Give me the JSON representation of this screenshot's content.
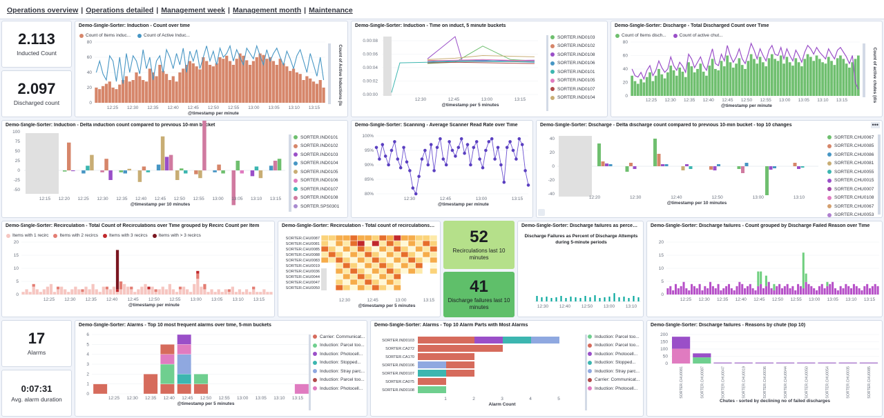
{
  "nav": [
    "Operations overview",
    "Operations detailed",
    "Management week",
    "Management month",
    "Maintenance"
  ],
  "colors": {
    "orange": "#d6866a",
    "orangeDark": "#c9693f",
    "blue": "#4796c4",
    "green": "#6fbf6f",
    "purple": "#9a4fc8",
    "teal": "#3cb6b0",
    "gray": "#e0e0e0"
  },
  "metrics": {
    "inducted": {
      "value": "2.113",
      "label": "Inducted Count"
    },
    "discharged": {
      "value": "2.097",
      "label": "Discharged count"
    },
    "alarms": {
      "value": "17",
      "label": "Alarms"
    },
    "alarm_duration": {
      "value": "0:07:31",
      "label": "Avg. alarm duration"
    },
    "recirc": {
      "value": "52",
      "label": "Recirculations last 10 minutes"
    },
    "discharge_fail": {
      "value": "41",
      "label": "Discharge failures last 10 minutes"
    }
  },
  "panels": {
    "p1": {
      "title": "Demo-Single-Sorter: Induction - Count over time",
      "legend": [
        "Count of Items induc...",
        "Count of Active Induc..."
      ],
      "xlabel": "@timestamp per minute",
      "ylabel2": "Count of Active Inductions (Is",
      "xticks": [
        "12:25",
        "12:30",
        "12:35",
        "12:40",
        "12:45",
        "12:50",
        "12:55",
        "13:00",
        "13:05",
        "13:10",
        "13:15"
      ],
      "yticks": [
        "0",
        "20",
        "40",
        "60",
        "80"
      ]
    },
    "p2": {
      "title": "Demo-Single-Sorter: Induction - Time on induct, 5 minute buckets",
      "xlabel": "@timestamp per 5 minutes",
      "xticks": [
        "12:30",
        "12:45",
        "13:00",
        "13:15"
      ],
      "yticks": [
        "0.00:00",
        "0.00:02",
        "0.00:04",
        "0.00:06",
        "0.00:08"
      ],
      "legend": [
        "SORTER.IND0103",
        "SORTER.IND0102",
        "SORTER.IND0108",
        "SORTER.IND0106",
        "SORTER.IND0101",
        "SORTER.IND0105",
        "SORTER.IND0107",
        "SORTER.IND0104"
      ]
    },
    "p3": {
      "title": "Demo-Single-Sorter: Discharge - Total Discharged Count over Time",
      "legend": [
        "Count of Items disch...",
        "Count of active chut..."
      ],
      "xlabel": "@timestamp per minute",
      "ylabel2": "Count of active chutes (dis",
      "xticks": [
        "12:25",
        "12:30",
        "12:35",
        "12:40",
        "12:45",
        "12:50",
        "12:55",
        "13:00",
        "13:05",
        "13:10",
        "13:15"
      ],
      "yticks": [
        "0",
        "20",
        "40",
        "60",
        "80"
      ]
    },
    "p4": {
      "title": "Demo-Single-Sorter: Induction - Delta induction count compared to previous 10-min bucket",
      "xlabel": "@timestamp per 10 minutes",
      "xticks": [
        "12:15",
        "12:20",
        "12:25",
        "12:30",
        "12:35",
        "12:40",
        "12:45",
        "12:50",
        "12:55",
        "13:00",
        "13:05",
        "13:10",
        "13:15"
      ],
      "yticks": [
        "-50",
        "-25",
        "0",
        "25",
        "50",
        "75",
        "100"
      ],
      "legend": [
        "SORTER.IND0101",
        "SORTER.IND0102",
        "SORTER.IND0103",
        "SORTER.IND0104",
        "SORTER.IND0105",
        "SORTER.IND0106",
        "SORTER.IND0107",
        "SORTER.IND0108",
        "SORTER.SPS0301"
      ]
    },
    "p5": {
      "title": "Demo-Single-Sorter: Scanning - Average Scanner Read Rate over Time",
      "xlabel": "@timestamp per minute",
      "xticks": [
        "12:30",
        "12:45",
        "13:00",
        "13:15"
      ],
      "yticks": [
        "80%",
        "85%",
        "90%",
        "95%",
        "100%"
      ]
    },
    "p6": {
      "title": "Demo-Single-Sorter: Discharge - Delta discharge count compared to previous 10-min bucket - top 10 changes",
      "xlabel": "@timestamp per 10 minutes",
      "xticks": [
        "12:20",
        "12:30",
        "12:40",
        "12:50",
        "13:00",
        "13:10"
      ],
      "yticks": [
        "-40",
        "-20",
        "0",
        "20",
        "40"
      ],
      "legend": [
        "SORTER.CHU0067",
        "SORTER.CHU0085",
        "SORTER.CHU0086",
        "SORTER.CHU0081",
        "SORTER.CHU0055",
        "SORTER.CHU0015",
        "SORTER.CHU0007",
        "SORTER.CHU0108",
        "SORTER.CHU0067",
        "SORTER.CHU0053"
      ]
    },
    "p7": {
      "title": "Demo-Single-Sorter: Recirculation - Total Count of Recirculations over Time grouped by Recirc Count per Item",
      "legend": [
        "Items with 1 recirc",
        "Items with 2 recircs",
        "Items with 3 recircs",
        "Items with > 3 recircs"
      ],
      "xlabel": "@timestamp per minute",
      "xticks": [
        "12:25",
        "12:30",
        "12:35",
        "12:40",
        "12:45",
        "12:50",
        "12:55",
        "13:00",
        "13:05",
        "13:10",
        "13:15"
      ],
      "yticks": [
        "0",
        "5",
        "10",
        "15",
        "20"
      ]
    },
    "p8": {
      "title": "Demo-Single-Sorter: Recirculation - Total count of recirculations by...",
      "xlabel": "@timestamp per 5 minutes",
      "xticks": [
        "12:30",
        "12:45",
        "13:00",
        "13:15"
      ],
      "rows": [
        "SORTER.CHU0087",
        "SORTER.CHU0081",
        "SORTER.CHU0085",
        "SORTER.CHU0088",
        "SORTER.CHU0083",
        "SORTER.CHU0019",
        "SORTER.CHU0036",
        "SORTER.CHU0044",
        "SORTER.CHU0047",
        "SORTER.CHU0050"
      ]
    },
    "p9": {
      "title": "Demo-Single-Sorter: Discharge failures as percent...",
      "subtitle1": "Discharge Failures as Percent of Discharge Attempts",
      "subtitle2": "during 5-minute periods",
      "xticks": [
        "12:30",
        "12:40",
        "12:50",
        "13:00",
        "13:10"
      ]
    },
    "p10": {
      "title": "Demo-Single-Sorter: Discharge failures - Count grouped by Discharge Failed Reason over Time",
      "xticks": [
        "12:25",
        "12:30",
        "12:35",
        "12:40",
        "12:45",
        "12:50",
        "12:55",
        "13:00",
        "13:05",
        "13:10",
        "13:15"
      ],
      "yticks": [
        "0",
        "5",
        "10",
        "15",
        "20"
      ]
    },
    "p11": {
      "title": "Demo-Single-Sorter: Alarms - Top 10 most frequent alarms over time, 5-min buckets",
      "xlabel": "@timestamp per 5 minutes",
      "xticks": [
        "12:25",
        "12:30",
        "12:35",
        "12:40",
        "12:45",
        "12:50",
        "12:55",
        "13:00",
        "13:05",
        "13:10",
        "13:15"
      ],
      "yticks": [
        "0",
        "1",
        "2",
        "3",
        "4",
        "5",
        "6"
      ],
      "legend": [
        "Carrier: Communicat...",
        "Induction: Parcel too...",
        "Induction: Photocell...",
        "Induction: Stopped...",
        "Induction: Stray parc...",
        "Induction: Parcel too...",
        "Induction: Photocell..."
      ]
    },
    "p12": {
      "title": "Demo-Single-Sorter: Alarms - Top 10 Alarm Parts with Most Alarms",
      "xlabel": "Alarm Count",
      "xticks": [
        "1",
        "2",
        "3",
        "4",
        "5"
      ],
      "rows": [
        "SORTER.IND0103",
        "SORTER.CA272",
        "SORTER.CA170",
        "SORTER.IND0106",
        "SORTER.IND0107",
        "SORTER.CA075",
        "SORTER.IND0108"
      ],
      "legend": [
        "Induction: Parcel too...",
        "Induction: Parcel too...",
        "Induction: Photocell...",
        "Induction: Stopped...",
        "Induction: Stray parc...",
        "Carrier: Communicat...",
        "Induction: Photocell..."
      ]
    },
    "p13": {
      "title": "Demo-Single-Sorter: Discharge failures - Reasons by chute (top 10)",
      "xlabel": "Chutes - sorted by declining no of failed discharges",
      "yticks": [
        "0",
        "50",
        "100",
        "150",
        "200"
      ],
      "chutes": [
        "SORTER.CHU0081",
        "SORTER.CHU0087",
        "SORTER.CHU0047",
        "SORTER.CHU0019",
        "SORTER.CHU0036",
        "SORTER.CHU0044",
        "SORTER.CHU0050",
        "SORTER.CHU0054",
        "SORTER.CHU0035",
        "SORTER.CHU0085"
      ]
    }
  },
  "chart_data": [
    {
      "type": "bar",
      "title": "Induction - Count over time",
      "series": [
        {
          "name": "Count of Items induc...",
          "values": [
            20,
            18,
            22,
            25,
            28,
            20,
            18,
            24,
            30,
            35,
            28,
            30,
            40,
            35,
            30,
            28,
            45,
            40,
            35,
            50,
            42,
            38,
            30,
            35,
            28,
            40,
            45,
            50,
            55,
            52,
            48,
            44,
            60,
            55,
            50,
            48,
            52,
            60,
            58,
            62,
            55,
            50,
            58,
            65,
            62,
            56,
            50,
            55,
            60,
            65,
            63,
            58,
            60,
            55,
            50,
            58,
            52,
            48,
            42,
            45,
            40,
            38,
            30,
            35,
            32,
            28,
            25,
            30,
            20
          ]
        },
        {
          "name": "Count of Active Induc...",
          "values": [
            40,
            55,
            38,
            30,
            62,
            55,
            28,
            60,
            25,
            65,
            40,
            62,
            55,
            38,
            70,
            45,
            60,
            30,
            55,
            62,
            40,
            70,
            60,
            45,
            65,
            50,
            72,
            40,
            68,
            55,
            70,
            45,
            60,
            75,
            55,
            68,
            50,
            72,
            60,
            65,
            75,
            55,
            70,
            60,
            50,
            72,
            65,
            58,
            75,
            62,
            50,
            70,
            55,
            65,
            72,
            60,
            50,
            68,
            58,
            45,
            62,
            70,
            55,
            40,
            65,
            50,
            35,
            60,
            30
          ]
        }
      ]
    },
    {
      "type": "line",
      "title": "Induction - Time on induct, 5 minute buckets"
    },
    {
      "type": "bar",
      "title": "Discharge - Total Discharged Count over Time",
      "series": [
        {
          "name": "Count of Items disch...",
          "values": [
            30,
            22,
            18,
            25,
            20,
            28,
            35,
            22,
            30,
            40,
            32,
            26,
            35,
            45,
            38,
            30,
            42,
            36,
            28,
            50,
            44,
            35,
            40,
            48,
            36,
            30,
            45,
            55,
            40,
            38,
            52,
            44,
            60,
            50,
            42,
            48,
            56,
            46,
            40,
            52,
            62,
            55,
            48,
            58,
            50,
            44,
            56,
            62,
            55,
            52,
            60,
            48,
            58,
            50,
            45,
            56,
            50,
            44,
            55,
            62,
            58,
            52,
            60,
            55,
            50,
            48,
            58,
            52,
            46,
            56,
            60,
            55,
            48,
            42,
            50,
            55,
            60
          ]
        },
        {
          "name": "Count of active chut...",
          "values": [
            40,
            30,
            28,
            35,
            25,
            38,
            45,
            30,
            38,
            52,
            42,
            35,
            40,
            58,
            45,
            38,
            50,
            44,
            35,
            62,
            55,
            42,
            50,
            58,
            45,
            38,
            55,
            70,
            48,
            45,
            62,
            52,
            75,
            60,
            50,
            58,
            70,
            55,
            48,
            62,
            78,
            68,
            55,
            70,
            60,
            52,
            68,
            75,
            62,
            60,
            72,
            55,
            70,
            60,
            52,
            68,
            60,
            50,
            65,
            75,
            70,
            62,
            72,
            65,
            60,
            55,
            70,
            62,
            55,
            68,
            72,
            65,
            58,
            48,
            60,
            20,
            10
          ]
        }
      ]
    },
    {
      "type": "bar",
      "title": "Induction - Delta induction count compared to previous 10-min bucket"
    },
    {
      "type": "line",
      "title": "Scanning - Average Scanner Read Rate over Time",
      "values": [
        96,
        92,
        97,
        93,
        90,
        95,
        98,
        92,
        89,
        96,
        91,
        88,
        82,
        80,
        86,
        92,
        95,
        90,
        97,
        88,
        96,
        99,
        92,
        90,
        98,
        95,
        93,
        96,
        99,
        94,
        97,
        90,
        96,
        98,
        92,
        89,
        95,
        98,
        99,
        92,
        96,
        90,
        84,
        96,
        98,
        95,
        92,
        99,
        97,
        88,
        83
      ]
    },
    {
      "type": "bar",
      "title": "Discharge - Delta discharge count compared to previous 10-min bucket - top 10 changes"
    },
    {
      "type": "bar",
      "title": "Recirculation - Total Count of Recirculations over Time grouped by Recirc Count per Item"
    },
    {
      "type": "heatmap",
      "title": "Recirculation - Total count of recirculations by..."
    },
    {
      "type": "bar",
      "title": "Discharge failures as percent..."
    },
    {
      "type": "bar",
      "title": "Discharge failures - Count grouped by Discharge Failed Reason over Time"
    },
    {
      "type": "bar",
      "title": "Alarms - Top 10 most frequent alarms over time, 5-min buckets"
    },
    {
      "type": "bar",
      "title": "Alarms - Top 10 Alarm Parts with Most Alarms",
      "categories": [
        "SORTER.IND0103",
        "SORTER.CA272",
        "SORTER.CA170",
        "SORTER.IND0106",
        "SORTER.IND0107",
        "SORTER.CA075",
        "SORTER.IND0108"
      ],
      "values": [
        5,
        3,
        2,
        2,
        2,
        1,
        1
      ]
    },
    {
      "type": "bar",
      "title": "Discharge failures - Reasons by chute (top 10)",
      "values": [
        185,
        70,
        4,
        3,
        3,
        3,
        3,
        3,
        3,
        3
      ]
    }
  ]
}
